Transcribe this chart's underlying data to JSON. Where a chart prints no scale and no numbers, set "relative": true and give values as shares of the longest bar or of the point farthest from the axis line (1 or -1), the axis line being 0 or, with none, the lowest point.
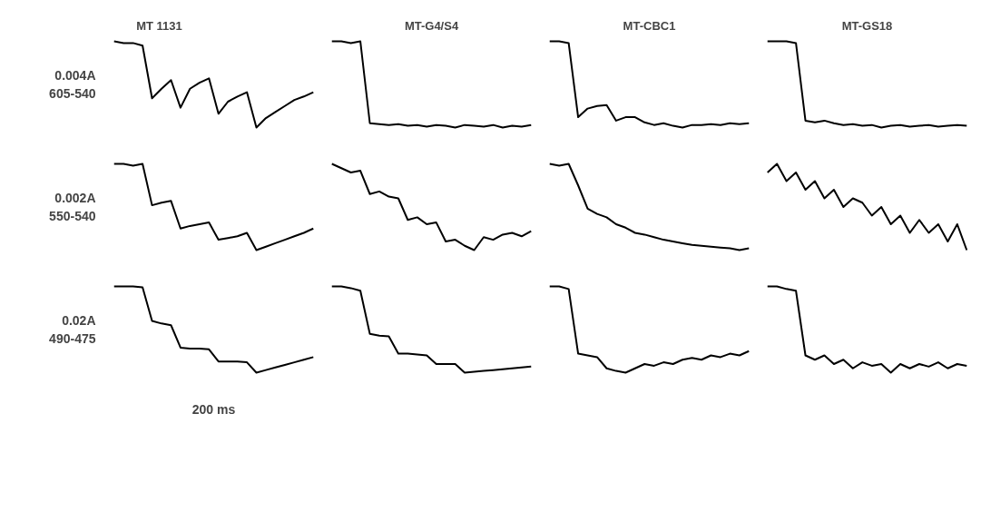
{
  "chart_data": [
    {
      "type": "line",
      "title": "MT 1131",
      "relative": true,
      "tick_labels": false,
      "categories": [
        null,
        null,
        null,
        null,
        null,
        null,
        null,
        null,
        null,
        null,
        null,
        null,
        null,
        null,
        null,
        null,
        null,
        null,
        null,
        null,
        null,
        null
      ],
      "annotations": [
        "0.004A",
        "605-540"
      ],
      "series": [
        {
          "color": "#000000",
          "values": [
            1.0,
            0.98,
            0.98,
            0.95,
            0.34,
            0.45,
            0.55,
            0.23,
            0.45,
            0.52,
            0.57,
            0.16,
            0.3,
            0.36,
            0.41,
            0,
            0.11,
            0.18,
            0.25,
            0.32,
            0.36,
            0.41
          ]
        }
      ]
    },
    {
      "type": "line",
      "title": "MT-G4/S4",
      "relative": true,
      "tick_labels": false,
      "categories": [
        null,
        null,
        null,
        null,
        null,
        null,
        null,
        null,
        null,
        null,
        null,
        null,
        null,
        null,
        null,
        null,
        null,
        null,
        null,
        null,
        null,
        null
      ],
      "series": [
        {
          "color": "#000000",
          "values": [
            1,
            1,
            0.98,
            1,
            0.05,
            0.04,
            0.03,
            0.04,
            0.02,
            0.03,
            0.01,
            0.03,
            0.02,
            0,
            0.03,
            0.02,
            0.01,
            0.03,
            0.0,
            0.02,
            0.01,
            0.03
          ]
        }
      ]
    },
    {
      "type": "line",
      "title": "MT-CBC1",
      "relative": true,
      "tick_labels": false,
      "categories": [
        null,
        null,
        null,
        null,
        null,
        null,
        null,
        null,
        null,
        null,
        null,
        null,
        null,
        null,
        null,
        null,
        null,
        null,
        null,
        null,
        null,
        null
      ],
      "series": [
        {
          "color": "#000000",
          "values": [
            1,
            1,
            0.98,
            0.12,
            0.22,
            0.25,
            0.26,
            0.08,
            0.12,
            0.12,
            0.06,
            0.03,
            0.05,
            0.02,
            0.0,
            0.03,
            0.03,
            0.04,
            0.03,
            0.05,
            0.04,
            0.05
          ]
        }
      ]
    },
    {
      "type": "line",
      "title": "MT-GS18",
      "relative": true,
      "tick_labels": false,
      "categories": [
        null,
        null,
        null,
        null,
        null,
        null,
        null,
        null,
        null,
        null,
        null,
        null,
        null,
        null,
        null,
        null,
        null,
        null,
        null,
        null,
        null,
        null
      ],
      "series": [
        {
          "color": "#000000",
          "values": [
            1,
            1,
            1,
            0.98,
            0.08,
            0.06,
            0.08,
            0.05,
            0.03,
            0.04,
            0.02,
            0.03,
            0.0,
            0.02,
            0.03,
            0.01,
            0.02,
            0.03,
            0.01,
            0.02,
            0.03,
            0.02
          ]
        }
      ]
    },
    {
      "type": "line",
      "relative": true,
      "tick_labels": false,
      "categories": [
        null,
        null,
        null,
        null,
        null,
        null,
        null,
        null,
        null,
        null,
        null,
        null,
        null,
        null,
        null,
        null,
        null,
        null,
        null,
        null,
        null,
        null
      ],
      "annotations": [
        "0.002A",
        "550-540"
      ],
      "series": [
        {
          "color": "#000000",
          "values": [
            1,
            1,
            0.98,
            1,
            0.52,
            0.55,
            0.57,
            0.25,
            0.28,
            0.3,
            0.32,
            0.12,
            0.14,
            0.16,
            0.2,
            0,
            0.04,
            0.08,
            0.12,
            0.16,
            0.2,
            0.25
          ]
        }
      ]
    },
    {
      "type": "line",
      "relative": true,
      "tick_labels": false,
      "categories": [
        null,
        null,
        null,
        null,
        null,
        null,
        null,
        null,
        null,
        null,
        null,
        null,
        null,
        null,
        null,
        null,
        null,
        null,
        null,
        null,
        null,
        null
      ],
      "series": [
        {
          "color": "#000000",
          "values": [
            1,
            0.95,
            0.9,
            0.92,
            0.65,
            0.68,
            0.62,
            0.6,
            0.35,
            0.38,
            0.3,
            0.32,
            0.1,
            0.12,
            0.05,
            0.0,
            0.15,
            0.12,
            0.18,
            0.2,
            0.16,
            0.22
          ]
        }
      ]
    },
    {
      "type": "line",
      "relative": true,
      "tick_labels": false,
      "categories": [
        null,
        null,
        null,
        null,
        null,
        null,
        null,
        null,
        null,
        null,
        null,
        null,
        null,
        null,
        null,
        null,
        null,
        null,
        null,
        null,
        null,
        null
      ],
      "series": [
        {
          "color": "#000000",
          "values": [
            1,
            0.98,
            1,
            0.75,
            0.48,
            0.42,
            0.38,
            0.3,
            0.26,
            0.2,
            0.18,
            0.15,
            0.12,
            0.1,
            0.08,
            0.06,
            0.05,
            0.04,
            0.03,
            0.02,
            0.0,
            0.02
          ]
        }
      ]
    },
    {
      "type": "line",
      "relative": true,
      "tick_labels": false,
      "categories": [
        null,
        null,
        null,
        null,
        null,
        null,
        null,
        null,
        null,
        null,
        null,
        null,
        null,
        null,
        null,
        null,
        null,
        null,
        null,
        null,
        null,
        null
      ],
      "series": [
        {
          "color": "#000000",
          "values": [
            0.9,
            1,
            0.8,
            0.9,
            0.7,
            0.8,
            0.6,
            0.7,
            0.5,
            0.6,
            0.55,
            0.4,
            0.5,
            0.3,
            0.4,
            0.2,
            0.35,
            0.2,
            0.3,
            0.1,
            0.3,
            0.0
          ]
        }
      ]
    },
    {
      "type": "line",
      "relative": true,
      "tick_labels": false,
      "categories": [
        null,
        null,
        null,
        null,
        null,
        null,
        null,
        null,
        null,
        null,
        null,
        null,
        null,
        null,
        null,
        null,
        null,
        null,
        null,
        null,
        null,
        null
      ],
      "annotations": [
        "0.02A",
        "490-475",
        "200 ms"
      ],
      "series": [
        {
          "color": "#000000",
          "values": [
            1,
            1,
            1,
            0.99,
            0.6,
            0.57,
            0.55,
            0.29,
            0.28,
            0.28,
            0.27,
            0.13,
            0.13,
            0.13,
            0.12,
            0,
            0.03,
            0.06,
            0.09,
            0.12,
            0.15,
            0.18
          ]
        }
      ]
    },
    {
      "type": "line",
      "relative": true,
      "tick_labels": false,
      "categories": [
        null,
        null,
        null,
        null,
        null,
        null,
        null,
        null,
        null,
        null,
        null,
        null,
        null,
        null,
        null,
        null,
        null,
        null,
        null,
        null,
        null,
        null
      ],
      "series": [
        {
          "color": "#000000",
          "values": [
            1,
            1,
            0.98,
            0.95,
            0.45,
            0.43,
            0.42,
            0.22,
            0.22,
            0.21,
            0.2,
            0.1,
            0.1,
            0.1,
            0.0,
            0.01,
            0.02,
            0.03,
            0.04,
            0.05,
            0.06,
            0.07
          ]
        }
      ]
    },
    {
      "type": "line",
      "relative": true,
      "tick_labels": false,
      "categories": [
        null,
        null,
        null,
        null,
        null,
        null,
        null,
        null,
        null,
        null,
        null,
        null,
        null,
        null,
        null,
        null,
        null,
        null,
        null,
        null,
        null,
        null
      ],
      "series": [
        {
          "color": "#000000",
          "values": [
            1,
            1,
            0.97,
            0.22,
            0.2,
            0.18,
            0.05,
            0.02,
            0.0,
            0.05,
            0.1,
            0.08,
            0.12,
            0.1,
            0.15,
            0.17,
            0.15,
            0.2,
            0.18,
            0.22,
            0.2,
            0.25
          ]
        }
      ]
    },
    {
      "type": "line",
      "relative": true,
      "tick_labels": false,
      "categories": [
        null,
        null,
        null,
        null,
        null,
        null,
        null,
        null,
        null,
        null,
        null,
        null,
        null,
        null,
        null,
        null,
        null,
        null,
        null,
        null,
        null,
        null
      ],
      "series": [
        {
          "color": "#000000",
          "values": [
            1,
            1,
            0.97,
            0.95,
            0.2,
            0.15,
            0.2,
            0.1,
            0.15,
            0.05,
            0.12,
            0.08,
            0.1,
            0.0,
            0.1,
            0.05,
            0.1,
            0.07,
            0.12,
            0.05,
            0.1,
            0.08
          ]
        }
      ]
    }
  ]
}
